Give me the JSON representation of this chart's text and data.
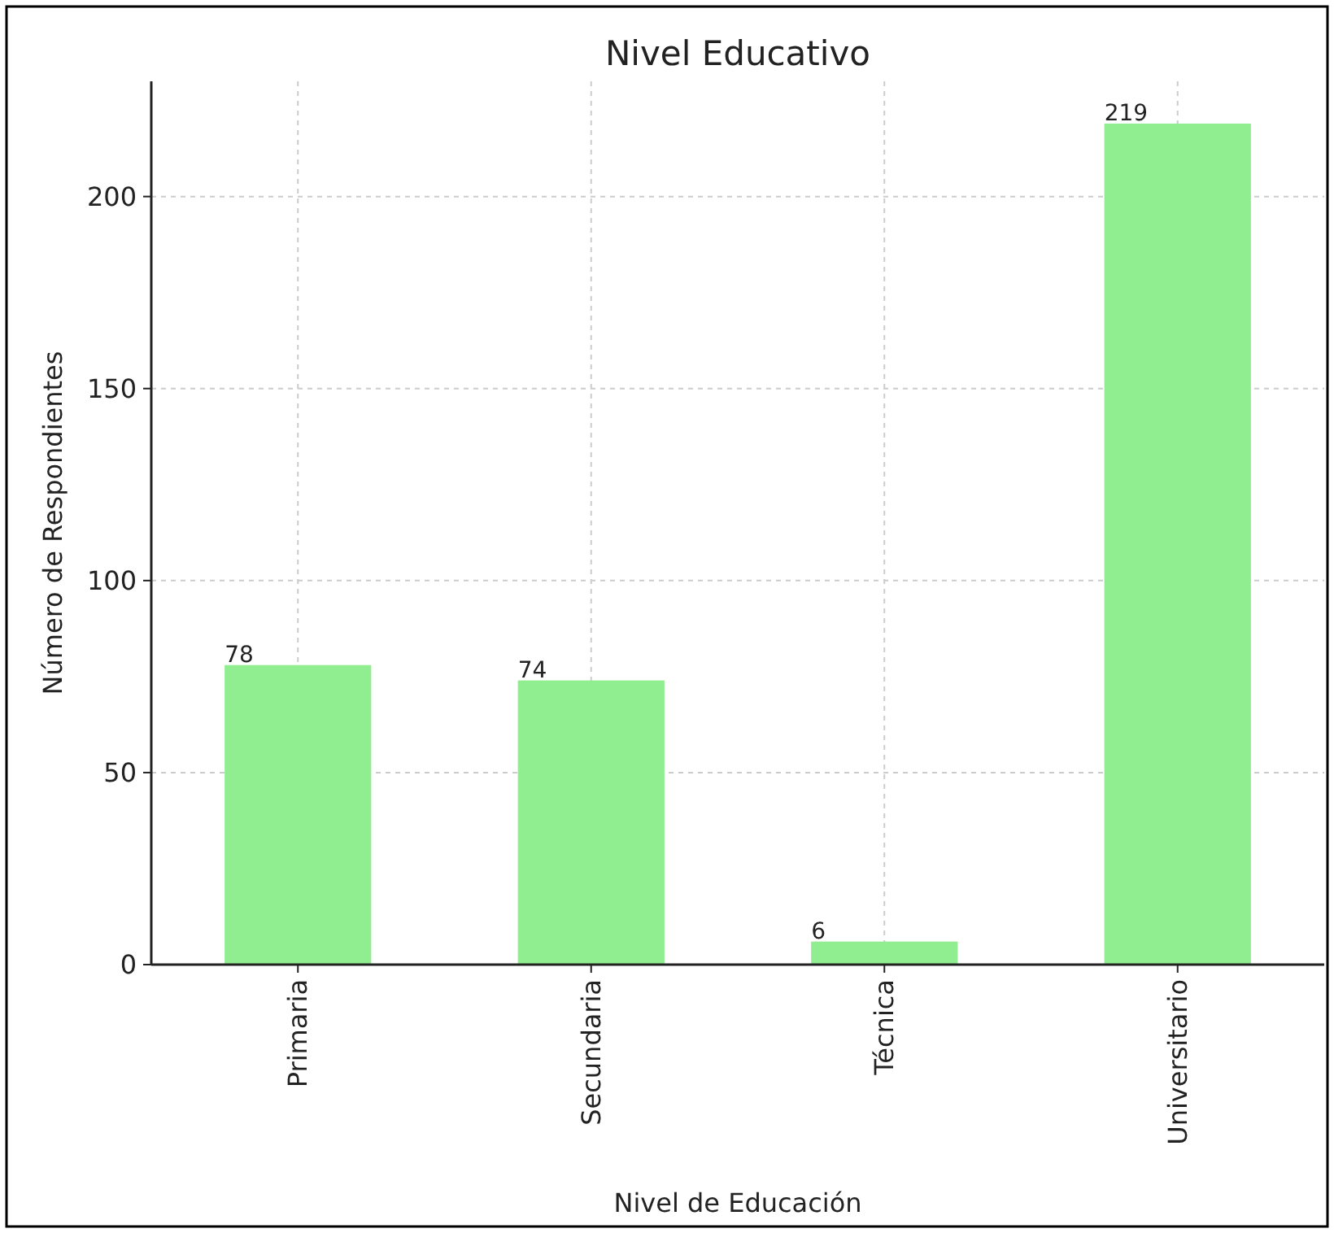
{
  "chart_data": {
    "type": "bar",
    "title": "Nivel Educativo",
    "xlabel": "Nivel de Educación",
    "ylabel": "Número de Respondientes",
    "categories": [
      "Primaria",
      "Secundaria",
      "Técnica",
      "Universitario"
    ],
    "values": [
      78,
      74,
      6,
      219
    ],
    "color": "#90ee90",
    "ylim": [
      0,
      230
    ],
    "yticks": [
      0,
      50,
      100,
      150,
      200
    ],
    "grid": true,
    "data_labels": true
  }
}
